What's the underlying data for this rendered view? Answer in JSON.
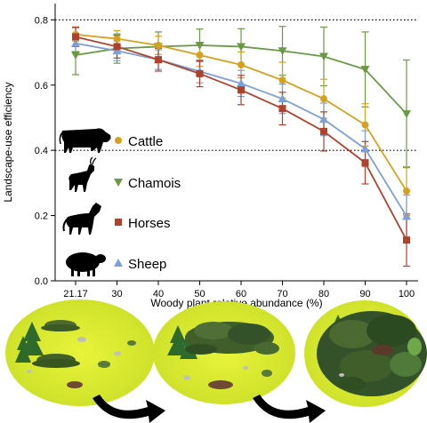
{
  "chart_data": {
    "type": "line",
    "title": "",
    "xlabel": "Woody plant relative abundance (%)",
    "ylabel": "Landscape-use efficiency",
    "x": [
      "21.17",
      "30",
      "40",
      "50",
      "60",
      "70",
      "80",
      "90",
      "100"
    ],
    "ylim": [
      0,
      0.85
    ],
    "yticks": [
      "0.0",
      "0.2",
      "0.4",
      "0.6",
      "0.8"
    ],
    "reference_lines": [
      0.4,
      0.8
    ],
    "grid": false,
    "legend_position": "left",
    "series": [
      {
        "name": "Cattle",
        "color": "#d4a21e",
        "marker": "circle",
        "animal_icon": "cow-silhouette-icon",
        "values": [
          0.755,
          0.742,
          0.722,
          0.692,
          0.662,
          0.615,
          0.558,
          0.478,
          0.275
        ],
        "errors": [
          0.02,
          0.025,
          0.028,
          0.035,
          0.04,
          0.055,
          0.06,
          0.065,
          0.075
        ]
      },
      {
        "name": "Chamois",
        "color": "#6a9a45",
        "marker": "triangle-down",
        "animal_icon": "chamois-silhouette-icon",
        "values": [
          0.692,
          0.712,
          0.718,
          0.722,
          0.718,
          0.705,
          0.688,
          0.648,
          0.512
        ],
        "errors": [
          0.06,
          0.045,
          0.045,
          0.05,
          0.055,
          0.075,
          0.09,
          0.115,
          0.165
        ]
      },
      {
        "name": "Horses",
        "color": "#b0412a",
        "marker": "square",
        "animal_icon": "horse-silhouette-icon",
        "values": [
          0.748,
          0.718,
          0.678,
          0.635,
          0.585,
          0.528,
          0.458,
          0.362,
          0.125
        ],
        "errors": [
          0.03,
          0.035,
          0.035,
          0.04,
          0.045,
          0.05,
          0.06,
          0.065,
          0.08
        ]
      },
      {
        "name": "Sheep",
        "color": "#7b9fd6",
        "marker": "triangle-up",
        "animal_icon": "sheep-silhouette-icon",
        "values": [
          0.728,
          0.705,
          0.678,
          0.642,
          0.605,
          0.558,
          0.495,
          0.405,
          0.198
        ],
        "errors": [
          0.025,
          0.03,
          0.03,
          0.035,
          0.04,
          0.045,
          0.05,
          0.055,
          0.065
        ]
      }
    ]
  },
  "illustration": {
    "panels": [
      "landscape-low-woody-icon",
      "landscape-medium-woody-icon",
      "landscape-high-woody-icon"
    ],
    "arrows": [
      "transition-arrow-icon",
      "transition-arrow-icon"
    ]
  }
}
